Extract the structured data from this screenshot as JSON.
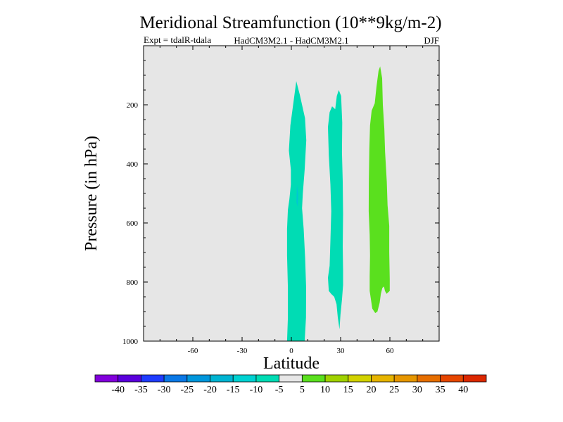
{
  "chart_data": {
    "type": "heatmap",
    "title": "Meridional Streamfunction (10**9kg/m-2)",
    "subtitle_left": "Expt = tdalR-tdala",
    "subtitle_center": "HadCM3M2.1 - HadCM3M2.1",
    "subtitle_right": "DJF",
    "xlabel": "Latitude",
    "ylabel": "Pressure (in hPa)",
    "xlim": [
      -90,
      90
    ],
    "ylim": [
      1000,
      0
    ],
    "x_ticks": [
      {
        "value": -60,
        "label": "-60"
      },
      {
        "value": -30,
        "label": "-30"
      },
      {
        "value": 0,
        "label": "0"
      },
      {
        "value": 30,
        "label": "30"
      },
      {
        "value": 60,
        "label": "60"
      }
    ],
    "y_ticks": [
      {
        "value": 200,
        "label": "200"
      },
      {
        "value": 400,
        "label": "400"
      },
      {
        "value": 600,
        "label": "600"
      },
      {
        "value": 800,
        "label": "800"
      },
      {
        "value": 1000,
        "label": "1000"
      }
    ],
    "background_color": "#e6e6e6",
    "regions": [
      {
        "name": "band-1",
        "color": "#00dcb4",
        "level_range": [
          -10,
          -5
        ],
        "polygon": [
          [
            -2.6,
            1060
          ],
          [
            1,
            1020
          ],
          [
            4,
            1030
          ],
          [
            7,
            1045
          ],
          [
            8,
            1010
          ],
          [
            8.9,
            920
          ],
          [
            9,
            820
          ],
          [
            8.4,
            720
          ],
          [
            7.5,
            620
          ],
          [
            6.5,
            550
          ],
          [
            7,
            500
          ],
          [
            8.1,
            420
          ],
          [
            9.1,
            320
          ],
          [
            8.3,
            245
          ],
          [
            5.1,
            165
          ],
          [
            3,
            120
          ],
          [
            -0.6,
            270
          ],
          [
            -1.5,
            355
          ],
          [
            -0.3,
            420
          ],
          [
            -0.3,
            470
          ],
          [
            -1.2,
            520
          ],
          [
            -2.1,
            555
          ],
          [
            -2.6,
            620
          ],
          [
            -2.6,
            710
          ],
          [
            -2.1,
            820
          ],
          [
            -2.1,
            920
          ],
          [
            -2.6,
            1000
          ]
        ]
      },
      {
        "name": "band-1-inner",
        "color": "#00c8d2",
        "level_range": [
          -15,
          -10
        ],
        "polygon": [
          [
            3.8,
            545
          ],
          [
            4.2,
            505
          ],
          [
            3.4,
            470
          ],
          [
            3.1,
            530
          ]
        ]
      },
      {
        "name": "band-2",
        "color": "#00dcb4",
        "level_range": [
          -10,
          -5
        ],
        "polygon": [
          [
            22.3,
            785
          ],
          [
            23.3,
            745
          ],
          [
            23.8,
            660
          ],
          [
            24.3,
            560
          ],
          [
            23.8,
            470
          ],
          [
            22.8,
            370
          ],
          [
            22.3,
            275
          ],
          [
            23.3,
            225
          ],
          [
            24.8,
            205
          ],
          [
            26.7,
            215
          ],
          [
            27.7,
            170
          ],
          [
            28.9,
            150
          ],
          [
            30.3,
            170
          ],
          [
            31,
            260
          ],
          [
            30.8,
            360
          ],
          [
            31.3,
            460
          ],
          [
            31.5,
            570
          ],
          [
            31.3,
            680
          ],
          [
            31.5,
            760
          ],
          [
            31.5,
            810
          ],
          [
            30.8,
            860
          ],
          [
            29.9,
            910
          ],
          [
            29.3,
            960
          ],
          [
            28.3,
            920
          ],
          [
            27.5,
            875
          ],
          [
            26.1,
            850
          ],
          [
            24.2,
            840
          ],
          [
            22.8,
            830
          ]
        ]
      },
      {
        "name": "band-3",
        "color": "#5ae01e",
        "level_range": [
          5,
          10
        ],
        "polygon": [
          [
            47.7,
            830
          ],
          [
            47.7,
            780
          ],
          [
            47.9,
            710
          ],
          [
            47.7,
            640
          ],
          [
            47.1,
            560
          ],
          [
            47.2,
            460
          ],
          [
            47.5,
            350
          ],
          [
            47.9,
            270
          ],
          [
            48.9,
            220
          ],
          [
            50.8,
            195
          ],
          [
            51.8,
            140
          ],
          [
            53.1,
            85
          ],
          [
            54.1,
            70
          ],
          [
            55.3,
            110
          ],
          [
            55.7,
            200
          ],
          [
            56.6,
            280
          ],
          [
            57.1,
            360
          ],
          [
            58.1,
            460
          ],
          [
            58.6,
            540
          ],
          [
            59.6,
            610
          ],
          [
            59.6,
            700
          ],
          [
            59.9,
            790
          ],
          [
            59.9,
            830
          ],
          [
            58,
            840
          ],
          [
            57,
            830
          ],
          [
            56.4,
            815
          ],
          [
            55.4,
            820
          ],
          [
            54.5,
            840
          ],
          [
            53.8,
            870
          ],
          [
            52.4,
            900
          ],
          [
            51.1,
            905
          ],
          [
            49.3,
            890
          ]
        ]
      }
    ],
    "colorbar": {
      "levels": [
        "-40",
        "-35",
        "-30",
        "-25",
        "-20",
        "-15",
        "-10",
        "-5",
        "5",
        "10",
        "15",
        "20",
        "25",
        "30",
        "35",
        "40"
      ],
      "colors": [
        "#8200dc",
        "#5a00dc",
        "#1e3cff",
        "#0a78e6",
        "#0096dc",
        "#00b4d2",
        "#00d2d2",
        "#00dcb4",
        "#e6e6e6",
        "#5ae01e",
        "#a0d200",
        "#d2d200",
        "#e6b400",
        "#e69600",
        "#e66e00",
        "#e64600",
        "#dc2800"
      ]
    }
  }
}
